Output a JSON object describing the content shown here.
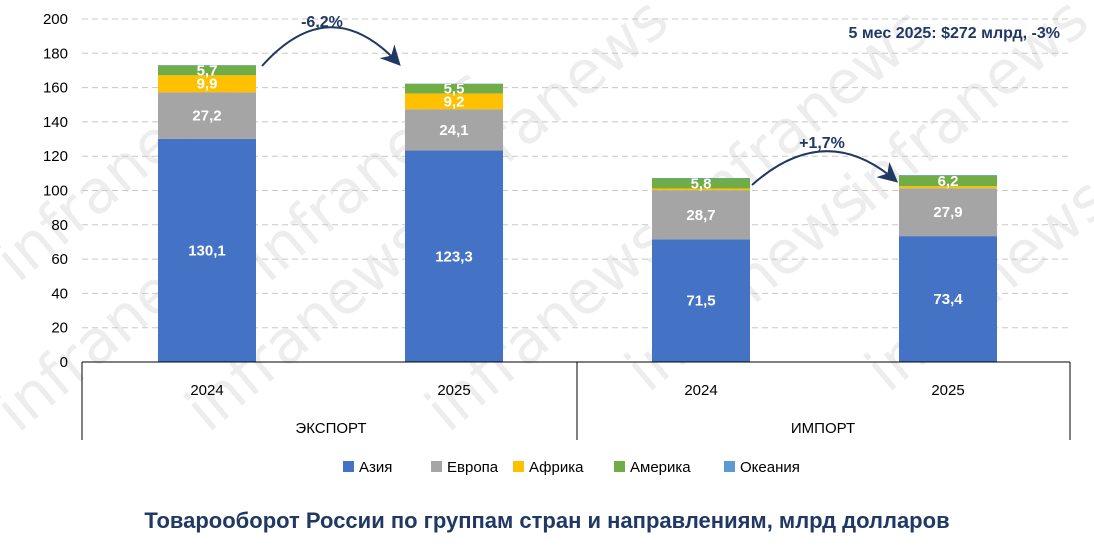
{
  "chart_data": {
    "type": "bar",
    "stacked": true,
    "title": "Товарооборот России по группам стран и направлениям, млрд долларов",
    "summary": "5 мес 2025: $272 млрд, -3%",
    "groups": [
      {
        "label": "ЭКСПОРТ",
        "categories": [
          "2024",
          "2025"
        ]
      },
      {
        "label": "ИМПОРТ",
        "categories": [
          "2024",
          "2025"
        ]
      }
    ],
    "categories": [
      "2024",
      "2025",
      "2024",
      "2025"
    ],
    "series": [
      {
        "name": "Азия",
        "color": "#4472c4",
        "values": [
          130.1,
          123.3,
          71.5,
          73.4
        ],
        "labels": [
          "130,1",
          "123,3",
          "71,5",
          "73,4"
        ]
      },
      {
        "name": "Европа",
        "color": "#a5a5a5",
        "values": [
          27.2,
          24.1,
          28.7,
          27.9
        ],
        "labels": [
          "27,2",
          "24,1",
          "28,7",
          "27,9"
        ]
      },
      {
        "name": "Африка",
        "color": "#ffc000",
        "values": [
          9.9,
          9.2,
          1.0,
          1.2
        ],
        "labels": [
          "9,9",
          "9,2",
          "",
          ""
        ]
      },
      {
        "name": "Америка",
        "color": "#70ad47",
        "values": [
          5.7,
          5.5,
          5.8,
          6.2
        ],
        "labels": [
          "5,7",
          "5,5",
          "5,8",
          "6,2"
        ]
      },
      {
        "name": "Океания",
        "color": "#5b9bd5",
        "values": [
          0.2,
          0.2,
          0.3,
          0.3
        ],
        "labels": [
          "",
          "",
          "",
          ""
        ]
      }
    ],
    "changes": [
      {
        "label": "-6,2%",
        "group": "ЭКСПОРТ"
      },
      {
        "label": "+1,7%",
        "group": "ИМПОРТ"
      }
    ],
    "y_ticks": [
      "0",
      "20",
      "40",
      "60",
      "80",
      "100",
      "120",
      "140",
      "160",
      "180",
      "200"
    ],
    "ylim": [
      0,
      200
    ],
    "grid": true,
    "legend_position": "bottom",
    "watermark": "infranews"
  }
}
